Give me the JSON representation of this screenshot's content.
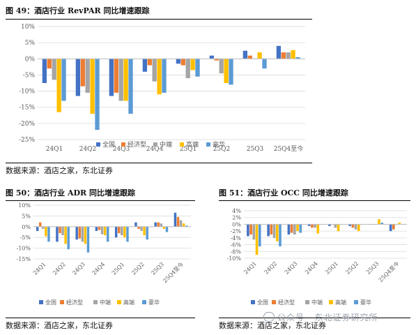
{
  "colors": {
    "series": [
      "#4472C4",
      "#ED7D31",
      "#A5A5A5",
      "#FFC000",
      "#5B9BD5"
    ],
    "grid": "#d9d9d9",
    "axis": "#bfbfbf",
    "text": "#595959"
  },
  "figures": [
    {
      "title": "图 49：酒店行业 RevPAR 同比增速跟踪",
      "source": "数据来源：酒店之家，东北证券"
    },
    {
      "title": "图 50：酒店行业 ADR 同比增速跟踪",
      "source": "数据来源：酒店之家，东北证券"
    },
    {
      "title": "图 51：酒店行业 OCC 同比增速跟踪",
      "source": "数据来源：酒店之家，东北证券"
    }
  ],
  "watermark": "公众号 · 东北证券研究所",
  "chart_data": [
    {
      "type": "bar",
      "title": "",
      "categories": [
        "24Q1",
        "24Q2",
        "24Q3",
        "24Q4",
        "25Q1",
        "25Q2",
        "25Q3",
        "25Q4至今"
      ],
      "ylim": [
        -0.25,
        0.1
      ],
      "yticks": [
        0.1,
        0.05,
        0.0,
        -0.05,
        -0.1,
        -0.15,
        -0.2,
        -0.25
      ],
      "ytick_labels": [
        "10%",
        "5%",
        "0%",
        "-5%",
        "-10%",
        "-15%",
        "-20%",
        "-25%"
      ],
      "grid": true,
      "legend": "bottom",
      "series": [
        {
          "name": "全国",
          "values": [
            -0.075,
            -0.115,
            -0.115,
            -0.04,
            -0.015,
            0.01,
            0.025,
            0.04
          ]
        },
        {
          "name": "经济型",
          "values": [
            -0.03,
            -0.085,
            -0.105,
            -0.02,
            -0.02,
            -0.005,
            0.01,
            0.02
          ]
        },
        {
          "name": "中端",
          "values": [
            -0.065,
            -0.105,
            -0.13,
            -0.07,
            -0.06,
            -0.045,
            0.0,
            0.02
          ]
        },
        {
          "name": "高端",
          "values": [
            -0.165,
            -0.17,
            -0.13,
            -0.11,
            -0.035,
            -0.075,
            0.02,
            0.027
          ]
        },
        {
          "name": "豪华",
          "values": [
            -0.13,
            -0.22,
            -0.17,
            -0.105,
            -0.055,
            -0.08,
            -0.03,
            0.005
          ]
        }
      ]
    },
    {
      "type": "bar",
      "title": "",
      "categories": [
        "24Q1",
        "24Q2",
        "24Q3",
        "24Q4",
        "25Q1",
        "25Q2",
        "25Q3",
        "25Q4至今"
      ],
      "ylim": [
        -0.15,
        0.1
      ],
      "yticks": [
        0.1,
        0.05,
        0.0,
        -0.05,
        -0.1,
        -0.15
      ],
      "ytick_labels": [
        "10%",
        "5%",
        "0%",
        "-5%",
        "-10%",
        "-15%"
      ],
      "grid": true,
      "legend": "bottom",
      "series": [
        {
          "name": "全国",
          "values": [
            -0.02,
            -0.07,
            -0.06,
            -0.02,
            -0.05,
            0.02,
            0.02,
            0.065
          ]
        },
        {
          "name": "经济型",
          "values": [
            0.02,
            -0.03,
            -0.055,
            -0.015,
            -0.03,
            -0.01,
            0.02,
            0.045
          ]
        },
        {
          "name": "中端",
          "values": [
            -0.01,
            -0.04,
            -0.07,
            -0.035,
            -0.04,
            -0.02,
            0.015,
            0.03
          ]
        },
        {
          "name": "高端",
          "values": [
            -0.045,
            -0.08,
            -0.08,
            -0.04,
            -0.05,
            -0.04,
            -0.01,
            0.015
          ]
        },
        {
          "name": "豪华",
          "values": [
            -0.07,
            -0.105,
            -0.12,
            -0.07,
            -0.07,
            -0.06,
            -0.025,
            0.005
          ]
        }
      ]
    },
    {
      "type": "bar",
      "title": "",
      "categories": [
        "24Q1",
        "24Q2",
        "24Q3",
        "24Q4",
        "25Q1",
        "25Q2",
        "25Q3",
        "25Q4至今"
      ],
      "ylim": [
        -0.1,
        0.04
      ],
      "yticks": [
        0.04,
        0.02,
        0.0,
        -0.02,
        -0.04,
        -0.06,
        -0.08,
        -0.1
      ],
      "ytick_labels": [
        "4%",
        "2%",
        "0%",
        "-2%",
        "-4%",
        "-6%",
        "-8%",
        "-10%"
      ],
      "grid": true,
      "legend": "bottom",
      "series": [
        {
          "name": "全国",
          "values": [
            -0.035,
            -0.035,
            -0.03,
            -0.005,
            -0.005,
            -0.005,
            0.0,
            -0.02
          ]
        },
        {
          "name": "经济型",
          "values": [
            -0.03,
            -0.03,
            -0.025,
            -0.01,
            0.0,
            -0.01,
            0.0,
            -0.015
          ]
        },
        {
          "name": "中端",
          "values": [
            -0.045,
            -0.04,
            -0.03,
            -0.01,
            -0.01,
            -0.015,
            0.0,
            0.0
          ]
        },
        {
          "name": "高端",
          "values": [
            -0.09,
            -0.05,
            -0.02,
            -0.027,
            -0.02,
            -0.02,
            0.015,
            0.005
          ]
        },
        {
          "name": "豪华",
          "values": [
            -0.065,
            -0.065,
            -0.025,
            0.0,
            0.0,
            0.0,
            0.005,
            0.0
          ]
        }
      ]
    }
  ]
}
